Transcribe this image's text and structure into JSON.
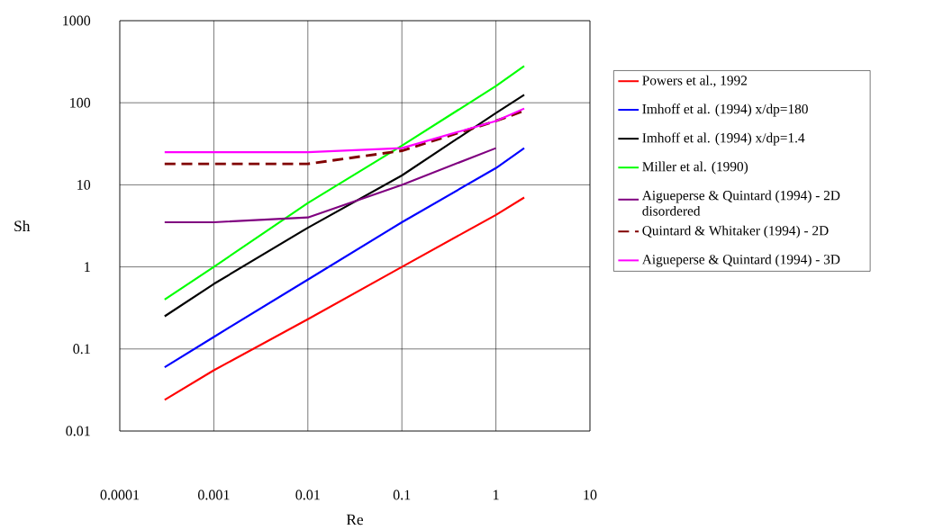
{
  "chart_data": {
    "type": "line",
    "xlabel": "Re",
    "ylabel": "Sh",
    "log": "xy",
    "grid": true,
    "legend": "right",
    "marker": "none",
    "x": [
      0.0003,
      0.001,
      0.01,
      0.1,
      1,
      2
    ],
    "xlim": [
      0.0001,
      10
    ],
    "ylim": [
      0.01,
      1000
    ],
    "xticks": [
      0.0001,
      0.001,
      0.01,
      0.1,
      1,
      10
    ],
    "yticks": [
      0.01,
      0.1,
      1,
      10,
      100,
      1000
    ],
    "series": [
      {
        "name": "Powers et al., 1992",
        "color": "#ff0000",
        "values": [
          0.024,
          0.055,
          0.23,
          1.0,
          4.3,
          7
        ]
      },
      {
        "name": "Imhoff et al. (1994) x/dp=180",
        "color": "#0000ff",
        "values": [
          0.06,
          0.14,
          0.7,
          3.5,
          16,
          28
        ]
      },
      {
        "name": "Imhoff et al. (1994) x/dp=1.4",
        "color": "#000000",
        "values": [
          0.25,
          0.62,
          3,
          13,
          75,
          125
        ]
      },
      {
        "name": "Miller et al. (1990)",
        "color": "#00ff00",
        "values": [
          0.4,
          1.0,
          6,
          30,
          160,
          280
        ]
      },
      {
        "name": "Aigueperse & Quintard (1994) - 2D disordered",
        "color": "#800080",
        "values": [
          3.5,
          3.5,
          4,
          10,
          28,
          null
        ]
      },
      {
        "name": "Quintard & Whitaker (1994) - 2D",
        "color": "#800000",
        "line_style": "dashed",
        "values": [
          18,
          18,
          18,
          26,
          60,
          80
        ]
      },
      {
        "name": "Aigueperse & Quintard (1994) - 3D",
        "color": "#ff00ff",
        "values": [
          25,
          25,
          25,
          28,
          60,
          85
        ]
      }
    ]
  }
}
